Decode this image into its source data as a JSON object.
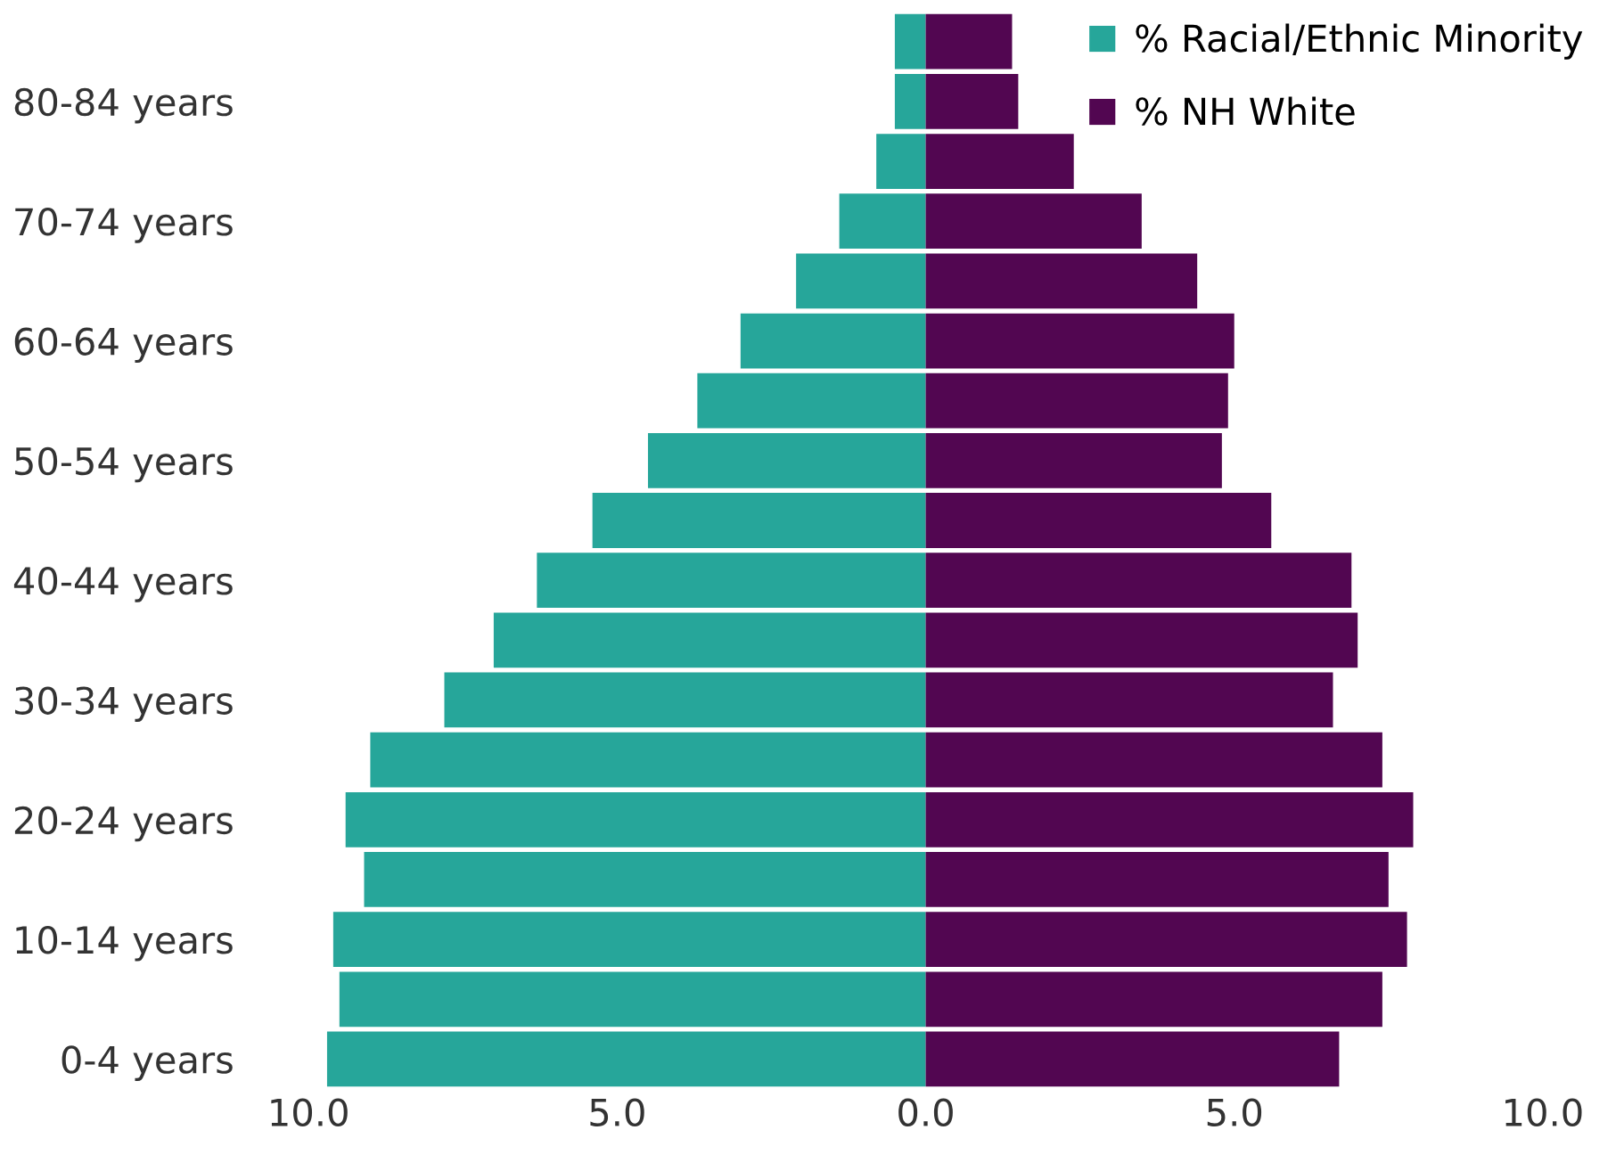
{
  "chart_data": {
    "type": "bar",
    "orientation": "horizontal",
    "categories": [
      null,
      "80-84 years",
      null,
      "70-74 years",
      null,
      "60-64 years",
      null,
      "50-54 years",
      null,
      "40-44 years",
      null,
      "30-34 years",
      null,
      "20-24 years",
      null,
      "10-14 years",
      null,
      "0-4 years"
    ],
    "series": [
      {
        "name": "% Racial/Ethnic Minority",
        "color": "#26a69a",
        "values": [
          -0.5,
          -0.5,
          -0.8,
          -1.4,
          -2.1,
          -3.0,
          -3.7,
          -4.5,
          -5.4,
          -6.3,
          -7.0,
          -7.8,
          -9.0,
          -9.4,
          -9.1,
          -9.6,
          -9.5,
          -9.7
        ]
      },
      {
        "name": "% NH White",
        "color": "#520651",
        "values": [
          1.4,
          1.5,
          2.4,
          3.5,
          4.4,
          5.0,
          4.9,
          4.8,
          5.6,
          6.9,
          7.0,
          6.6,
          7.4,
          7.9,
          7.5,
          7.8,
          7.4,
          6.7
        ]
      }
    ],
    "xlim": [
      -10,
      10
    ],
    "xticks": [
      {
        "value": -10,
        "label": "10.0"
      },
      {
        "value": -5,
        "label": "5.0"
      },
      {
        "value": 0,
        "label": "0.0"
      },
      {
        "value": 5,
        "label": "5.0"
      },
      {
        "value": 10,
        "label": "10.0"
      }
    ],
    "stacked": true,
    "grid": false,
    "legend": "top right"
  }
}
